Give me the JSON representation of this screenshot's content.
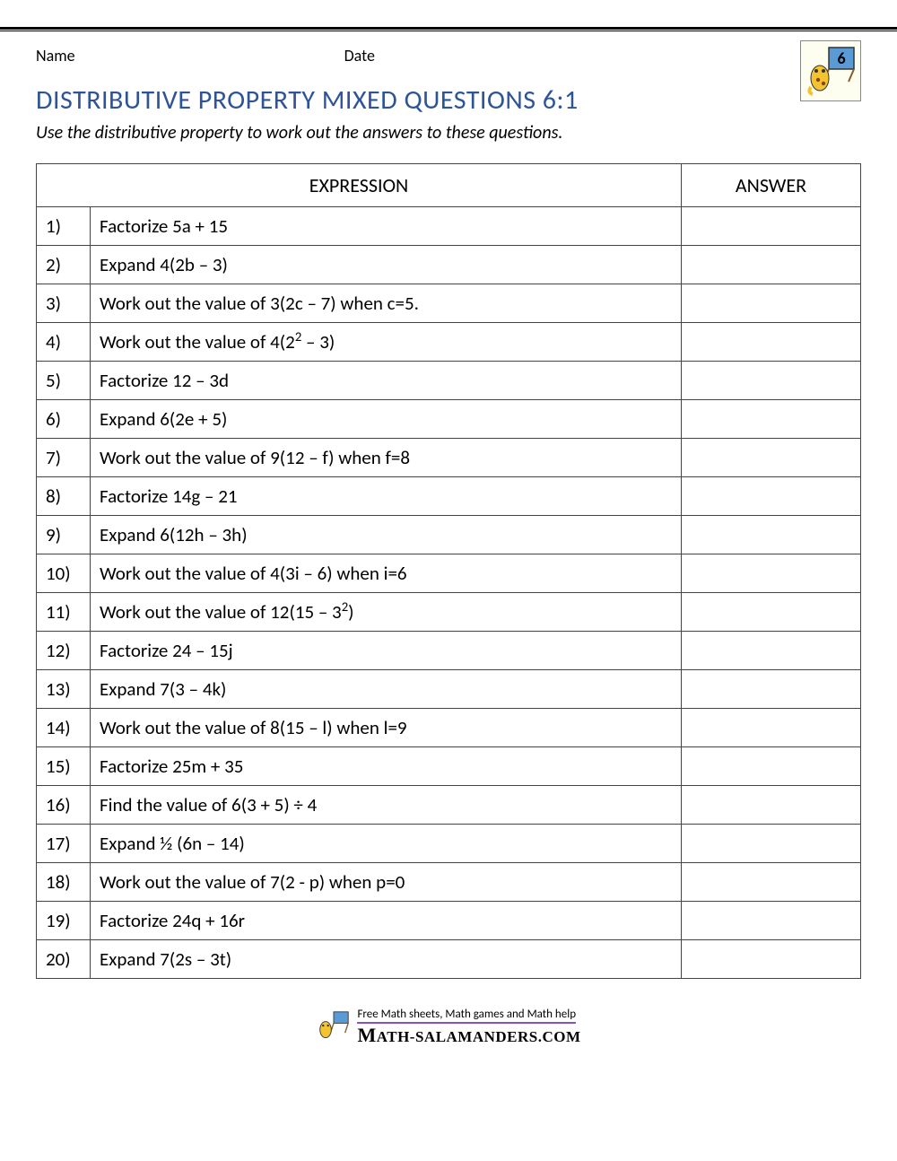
{
  "header": {
    "name_label": "Name",
    "date_label": "Date",
    "logo_number": "6"
  },
  "title": "DISTRIBUTIVE PROPERTY MIXED QUESTIONS 6:1",
  "instructions": "Use the distributive property to work out the answers to these questions.",
  "table": {
    "header_expression": "EXPRESSION",
    "header_answer": "ANSWER",
    "rows": [
      {
        "num": "1)",
        "expr": "Factorize 5a + 15"
      },
      {
        "num": "2)",
        "expr": "Expand 4(2b – 3)"
      },
      {
        "num": "3)",
        "expr": "Work out the value of 3(2c – 7) when c=5."
      },
      {
        "num": "4)",
        "expr": "Work out the value of 4(2",
        "sup": "2",
        "expr_after": " – 3)"
      },
      {
        "num": "5)",
        "expr": "Factorize 12 – 3d"
      },
      {
        "num": "6)",
        "expr": "Expand 6(2e + 5)"
      },
      {
        "num": "7)",
        "expr": "Work out the value of 9(12 – f) when f=8"
      },
      {
        "num": "8)",
        "expr": "Factorize 14g – 21"
      },
      {
        "num": "9)",
        "expr": "Expand 6(12h – 3h)"
      },
      {
        "num": "10)",
        "expr": "Work out the value of 4(3i – 6) when i=6"
      },
      {
        "num": "11)",
        "expr": "Work out the value of 12(15 – 3",
        "sup": "2",
        "expr_after": ")"
      },
      {
        "num": "12)",
        "expr": "Factorize 24 – 15j"
      },
      {
        "num": "13)",
        "expr": "Expand 7(3 – 4k)"
      },
      {
        "num": "14)",
        "expr": "Work out the value of 8(15 – l) when l=9"
      },
      {
        "num": "15)",
        "expr": "Factorize 25m + 35"
      },
      {
        "num": "16)",
        "expr": "Find the value of 6(3 + 5) ÷ 4"
      },
      {
        "num": "17)",
        "expr": "Expand ½ (6n – 14)"
      },
      {
        "num": "18)",
        "expr": "Work out the value of 7(2 - p) when p=0"
      },
      {
        "num": "19)",
        "expr": "Factorize 24q + 16r"
      },
      {
        "num": "20)",
        "expr": "Expand 7(2s – 3t)"
      }
    ]
  },
  "footer": {
    "tagline": "Free Math sheets, Math games and Math help",
    "brand": "ATH-SALAMANDERS.COM"
  },
  "colors": {
    "title": "#2f5496",
    "border": "#444444",
    "underline": "#8a4fc9"
  }
}
